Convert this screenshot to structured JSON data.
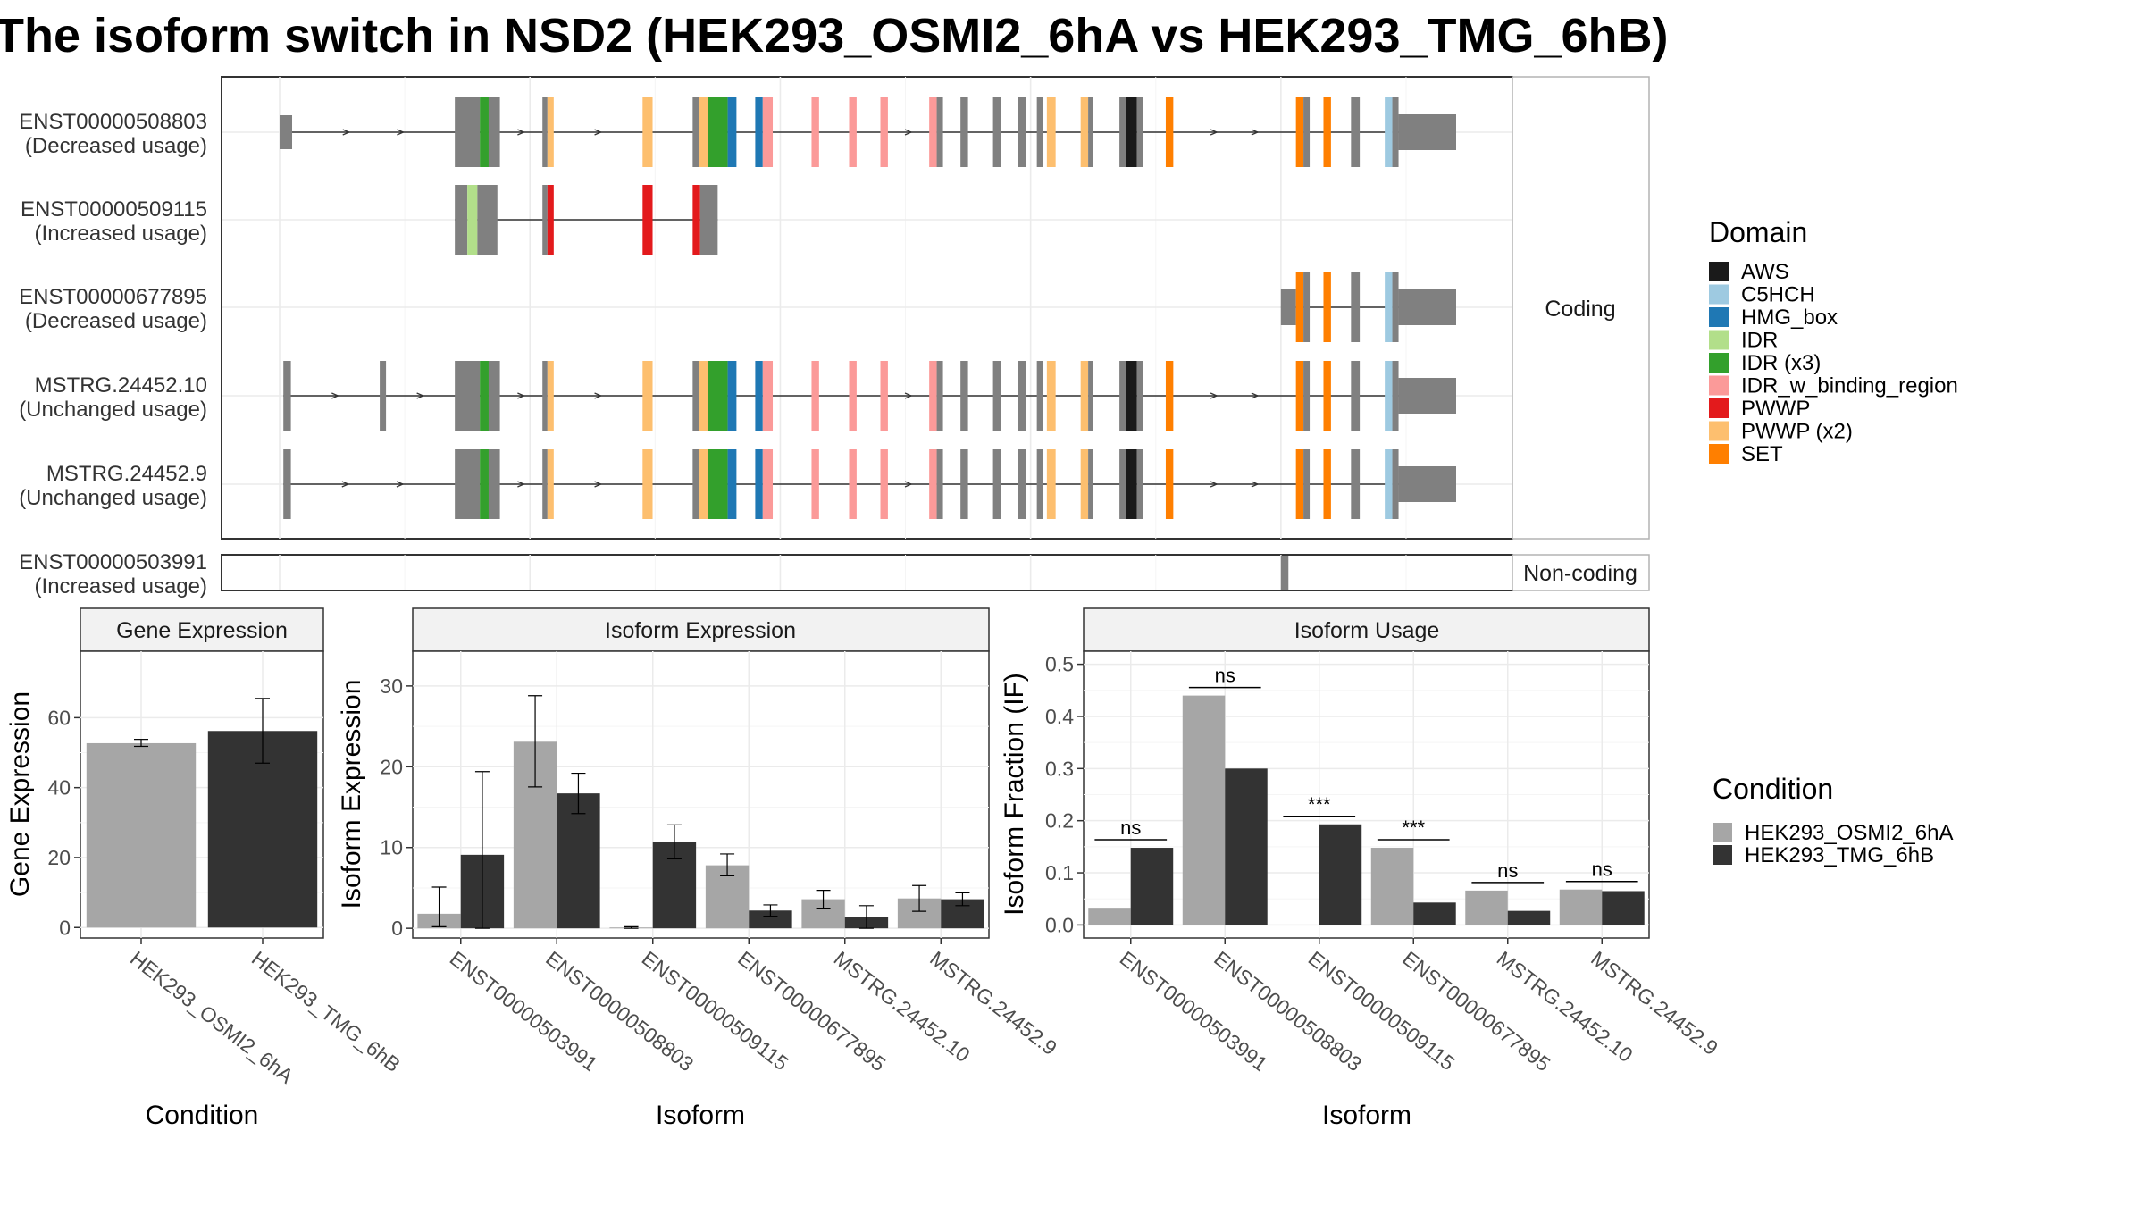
{
  "title": "The isoform switch in NSD2 (HEK293_OSMI2_6hA vs HEK293_TMG_6hB)",
  "coding_strip": "Coding",
  "noncoding_strip": "Non-coding",
  "domain_colors": {
    "AWS": "#1a1a1a",
    "C5HCH": "#9ecae1",
    "HMG_box": "#1f78b4",
    "IDR": "#b2df8a",
    "IDR (x3)": "#33a02c",
    "IDR_w_binding_region": "#fb9a99",
    "PWWP": "#e31a1c",
    "PWWP (x2)": "#fdbf6f",
    "SET": "#ff7f00",
    "none": "#808080"
  },
  "transcripts": [
    {
      "id": "ENST00000508803",
      "usage": "(Decreased usage)",
      "group": "coding",
      "strand_arrows": true,
      "exons": [
        [
          0.0,
          1.0,
          "none",
          0
        ],
        [
          14.0,
          16.0,
          "none",
          1
        ],
        [
          16.0,
          16.7,
          "IDR (x3)",
          1
        ],
        [
          16.7,
          17.6,
          "none",
          1
        ],
        [
          21.0,
          21.4,
          "none",
          1
        ],
        [
          21.4,
          21.9,
          "PWWP (x2)",
          1
        ],
        [
          29.0,
          29.8,
          "PWWP (x2)",
          1
        ],
        [
          33.0,
          33.5,
          "none",
          1
        ],
        [
          33.5,
          34.2,
          "PWWP (x2)",
          1
        ],
        [
          34.2,
          35.8,
          "IDR (x3)",
          1
        ],
        [
          35.8,
          36.5,
          "HMG_box",
          1
        ],
        [
          38.0,
          38.6,
          "HMG_box",
          1
        ],
        [
          38.6,
          39.4,
          "IDR_w_binding_region",
          1
        ],
        [
          42.5,
          43.1,
          "IDR_w_binding_region",
          1
        ],
        [
          45.5,
          46.1,
          "IDR_w_binding_region",
          1
        ],
        [
          48.0,
          48.6,
          "IDR_w_binding_region",
          1
        ],
        [
          51.9,
          52.5,
          "IDR_w_binding_region",
          1
        ],
        [
          52.5,
          53.0,
          "none",
          1
        ],
        [
          54.4,
          55.0,
          "none",
          1
        ],
        [
          57.0,
          57.6,
          "none",
          1
        ],
        [
          59.0,
          59.6,
          "none",
          1
        ],
        [
          60.5,
          61.0,
          "none",
          1
        ],
        [
          61.3,
          62.0,
          "PWWP (x2)",
          1
        ],
        [
          64.0,
          64.6,
          "PWWP (x2)",
          1
        ],
        [
          64.6,
          65.0,
          "none",
          1
        ],
        [
          67.1,
          67.6,
          "none",
          1
        ],
        [
          67.6,
          68.5,
          "AWS",
          1
        ],
        [
          68.5,
          69.0,
          "none",
          1
        ],
        [
          70.8,
          71.4,
          "SET",
          1
        ],
        [
          81.2,
          81.8,
          "SET",
          1
        ],
        [
          81.8,
          82.3,
          "none",
          1
        ],
        [
          83.4,
          84.0,
          "SET",
          1
        ],
        [
          85.6,
          86.3,
          "none",
          1
        ],
        [
          88.3,
          88.9,
          "C5HCH",
          1
        ],
        [
          88.9,
          89.4,
          "none",
          1
        ],
        [
          89.4,
          94.0,
          "none",
          2
        ]
      ]
    },
    {
      "id": "ENST00000509115",
      "usage": "(Increased usage)",
      "group": "coding",
      "strand_arrows": false,
      "exons": [
        [
          14.0,
          15.0,
          "none",
          1
        ],
        [
          15.0,
          15.8,
          "IDR",
          1
        ],
        [
          15.8,
          17.4,
          "none",
          1
        ],
        [
          21.0,
          21.4,
          "none",
          1
        ],
        [
          21.4,
          21.9,
          "PWWP",
          1
        ],
        [
          29.0,
          29.8,
          "PWWP",
          1
        ],
        [
          33.0,
          33.6,
          "PWWP",
          1
        ],
        [
          33.6,
          35.0,
          "none",
          1
        ]
      ]
    },
    {
      "id": "ENST00000677895",
      "usage": "(Decreased usage)",
      "group": "coding",
      "strand_arrows": false,
      "exons": [
        [
          80.0,
          81.2,
          "none",
          2
        ],
        [
          81.2,
          81.8,
          "SET",
          1
        ],
        [
          81.8,
          82.3,
          "none",
          1
        ],
        [
          83.4,
          84.0,
          "SET",
          1
        ],
        [
          85.6,
          86.3,
          "none",
          1
        ],
        [
          88.3,
          88.9,
          "C5HCH",
          1
        ],
        [
          88.9,
          89.4,
          "none",
          1
        ],
        [
          89.4,
          94.0,
          "none",
          2
        ]
      ]
    },
    {
      "id": "MSTRG.24452.10",
      "usage": "(Unchanged usage)",
      "group": "coding",
      "strand_arrows": true,
      "exons": [
        [
          0.3,
          0.9,
          "none",
          1
        ],
        [
          8.0,
          8.5,
          "none",
          1
        ],
        [
          14.0,
          16.0,
          "none",
          1
        ],
        [
          16.0,
          16.7,
          "IDR (x3)",
          1
        ],
        [
          16.7,
          17.6,
          "none",
          1
        ],
        [
          21.0,
          21.4,
          "none",
          1
        ],
        [
          21.4,
          21.9,
          "PWWP (x2)",
          1
        ],
        [
          29.0,
          29.8,
          "PWWP (x2)",
          1
        ],
        [
          33.0,
          33.5,
          "none",
          1
        ],
        [
          33.5,
          34.2,
          "PWWP (x2)",
          1
        ],
        [
          34.2,
          35.8,
          "IDR (x3)",
          1
        ],
        [
          35.8,
          36.5,
          "HMG_box",
          1
        ],
        [
          38.0,
          38.6,
          "HMG_box",
          1
        ],
        [
          38.6,
          39.4,
          "IDR_w_binding_region",
          1
        ],
        [
          42.5,
          43.1,
          "IDR_w_binding_region",
          1
        ],
        [
          45.5,
          46.1,
          "IDR_w_binding_region",
          1
        ],
        [
          48.0,
          48.6,
          "IDR_w_binding_region",
          1
        ],
        [
          51.9,
          52.5,
          "IDR_w_binding_region",
          1
        ],
        [
          52.5,
          53.0,
          "none",
          1
        ],
        [
          54.4,
          55.0,
          "none",
          1
        ],
        [
          57.0,
          57.6,
          "none",
          1
        ],
        [
          59.0,
          59.6,
          "none",
          1
        ],
        [
          60.5,
          61.0,
          "none",
          1
        ],
        [
          61.3,
          62.0,
          "PWWP (x2)",
          1
        ],
        [
          64.0,
          64.6,
          "PWWP (x2)",
          1
        ],
        [
          64.6,
          65.0,
          "none",
          1
        ],
        [
          67.1,
          67.6,
          "none",
          1
        ],
        [
          67.6,
          68.5,
          "AWS",
          1
        ],
        [
          68.5,
          69.0,
          "none",
          1
        ],
        [
          70.8,
          71.4,
          "SET",
          1
        ],
        [
          81.2,
          81.8,
          "SET",
          1
        ],
        [
          81.8,
          82.3,
          "none",
          1
        ],
        [
          83.4,
          84.0,
          "SET",
          1
        ],
        [
          85.6,
          86.3,
          "none",
          1
        ],
        [
          88.3,
          88.9,
          "C5HCH",
          1
        ],
        [
          88.9,
          89.4,
          "none",
          1
        ],
        [
          89.4,
          94.0,
          "none",
          2
        ]
      ]
    },
    {
      "id": "MSTRG.24452.9",
      "usage": "(Unchanged usage)",
      "group": "coding",
      "strand_arrows": true,
      "exons": [
        [
          0.3,
          0.9,
          "none",
          1
        ],
        [
          14.0,
          16.0,
          "none",
          1
        ],
        [
          16.0,
          16.7,
          "IDR (x3)",
          1
        ],
        [
          16.7,
          17.6,
          "none",
          1
        ],
        [
          21.0,
          21.4,
          "none",
          1
        ],
        [
          21.4,
          21.9,
          "PWWP (x2)",
          1
        ],
        [
          29.0,
          29.8,
          "PWWP (x2)",
          1
        ],
        [
          33.0,
          33.5,
          "none",
          1
        ],
        [
          33.5,
          34.2,
          "PWWP (x2)",
          1
        ],
        [
          34.2,
          35.8,
          "IDR (x3)",
          1
        ],
        [
          35.8,
          36.5,
          "HMG_box",
          1
        ],
        [
          38.0,
          38.6,
          "HMG_box",
          1
        ],
        [
          38.6,
          39.4,
          "IDR_w_binding_region",
          1
        ],
        [
          42.5,
          43.1,
          "IDR_w_binding_region",
          1
        ],
        [
          45.5,
          46.1,
          "IDR_w_binding_region",
          1
        ],
        [
          48.0,
          48.6,
          "IDR_w_binding_region",
          1
        ],
        [
          51.9,
          52.5,
          "IDR_w_binding_region",
          1
        ],
        [
          52.5,
          53.0,
          "none",
          1
        ],
        [
          54.4,
          55.0,
          "none",
          1
        ],
        [
          57.0,
          57.6,
          "none",
          1
        ],
        [
          59.0,
          59.6,
          "none",
          1
        ],
        [
          60.5,
          61.0,
          "none",
          1
        ],
        [
          61.3,
          62.0,
          "PWWP (x2)",
          1
        ],
        [
          64.0,
          64.6,
          "PWWP (x2)",
          1
        ],
        [
          64.6,
          65.0,
          "none",
          1
        ],
        [
          67.1,
          67.6,
          "none",
          1
        ],
        [
          67.6,
          68.5,
          "AWS",
          1
        ],
        [
          68.5,
          69.0,
          "none",
          1
        ],
        [
          70.8,
          71.4,
          "SET",
          1
        ],
        [
          81.2,
          81.8,
          "SET",
          1
        ],
        [
          81.8,
          82.3,
          "none",
          1
        ],
        [
          83.4,
          84.0,
          "SET",
          1
        ],
        [
          85.6,
          86.3,
          "none",
          1
        ],
        [
          88.3,
          88.9,
          "C5HCH",
          1
        ],
        [
          88.9,
          89.4,
          "none",
          1
        ],
        [
          89.4,
          94.0,
          "none",
          2
        ]
      ]
    },
    {
      "id": "ENST00000503991",
      "usage": "(Increased usage)",
      "group": "noncoding",
      "strand_arrows": false,
      "exons": [
        [
          80.0,
          80.6,
          "none",
          1
        ]
      ]
    }
  ],
  "domain_legend": {
    "title": "Domain",
    "items": [
      "AWS",
      "C5HCH",
      "HMG_box",
      "IDR",
      "IDR (x3)",
      "IDR_w_binding_region",
      "PWWP",
      "PWWP (x2)",
      "SET"
    ]
  },
  "condition_legend": {
    "title": "Condition",
    "items": [
      {
        "label": "HEK293_OSMI2_6hA",
        "color": "#a6a6a6"
      },
      {
        "label": "HEK293_TMG_6hB",
        "color": "#333333"
      }
    ]
  },
  "chart_data": [
    {
      "type": "bar",
      "title": "Gene Expression",
      "xlabel": "Condition",
      "ylabel": "Gene Expression",
      "ylim": [
        -3,
        79
      ],
      "yticks": [
        0,
        20,
        40,
        60
      ],
      "categories": [
        "HEK293_OSMI2_6hA",
        "HEK293_TMG_6hB"
      ],
      "values": [
        52.7,
        56.2
      ],
      "errors": [
        [
          51.8,
          53.8
        ],
        [
          47.0,
          65.5
        ]
      ]
    },
    {
      "type": "bar",
      "title": "Isoform Expression",
      "xlabel": "Isoform",
      "ylabel": "Isoform Expression",
      "ylim": [
        -1.2,
        34.3
      ],
      "yticks": [
        0,
        10,
        20,
        30
      ],
      "categories": [
        "ENST00000503991",
        "ENST00000508803",
        "ENST00000509115",
        "ENST00000677895",
        "MSTRG.24452.10",
        "MSTRG.24452.9"
      ],
      "series": [
        {
          "name": "HEK293_OSMI2_6hA",
          "values": [
            1.8,
            23.1,
            0.1,
            7.8,
            3.6,
            3.7
          ],
          "errors": [
            [
              0.2,
              5.1
            ],
            [
              17.5,
              28.8
            ],
            [
              0.0,
              0.2
            ],
            [
              6.5,
              9.2
            ],
            [
              2.5,
              4.7
            ],
            [
              2.1,
              5.3
            ]
          ]
        },
        {
          "name": "HEK293_TMG_6hB",
          "values": [
            9.1,
            16.7,
            10.7,
            2.2,
            1.4,
            3.6
          ],
          "errors": [
            [
              0.0,
              19.4
            ],
            [
              14.2,
              19.2
            ],
            [
              8.6,
              12.8
            ],
            [
              1.5,
              2.9
            ],
            [
              0.0,
              2.8
            ],
            [
              2.8,
              4.4
            ]
          ]
        }
      ]
    },
    {
      "type": "bar",
      "title": "Isoform Usage",
      "xlabel": "Isoform",
      "ylabel": "Isoform Fraction (IF)",
      "ylim": [
        -0.025,
        0.525
      ],
      "yticks": [
        0.0,
        0.1,
        0.2,
        0.3,
        0.4,
        0.5
      ],
      "ytick_labels": [
        "0.0",
        "0.1",
        "0.2",
        "0.3",
        "0.4",
        "0.5"
      ],
      "categories": [
        "ENST00000503991",
        "ENST00000508803",
        "ENST00000509115",
        "ENST00000677895",
        "MSTRG.24452.10",
        "MSTRG.24452.9"
      ],
      "series": [
        {
          "name": "HEK293_OSMI2_6hA",
          "values": [
            0.033,
            0.44,
            0.0,
            0.148,
            0.066,
            0.068
          ]
        },
        {
          "name": "HEK293_TMG_6hB",
          "values": [
            0.148,
            0.3,
            0.193,
            0.043,
            0.027,
            0.065
          ]
        }
      ],
      "significance": [
        "ns",
        "ns",
        "***",
        "***",
        "ns",
        "ns"
      ]
    }
  ]
}
